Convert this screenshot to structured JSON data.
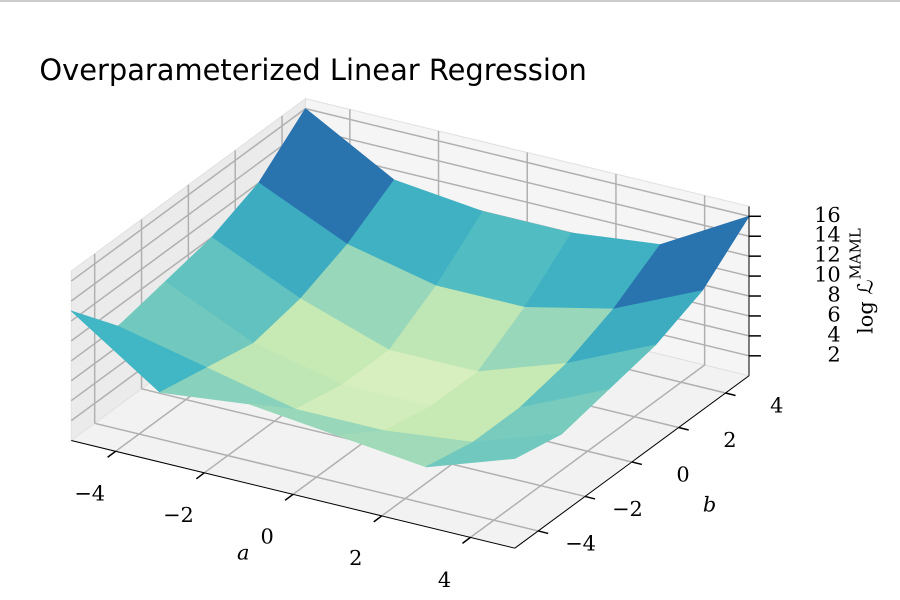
{
  "chart_data": {
    "type": "surface",
    "title": "Overparameterized Linear Regression",
    "xlabel": "a",
    "ylabel": "b",
    "zlabel": "log ℒ",
    "zlabel_superscript": "MAML",
    "x": [
      -5,
      -3,
      -1,
      1,
      3,
      5
    ],
    "y": [
      -5,
      -3,
      -1,
      1,
      3,
      5
    ],
    "z": [
      [
        13,
        7,
        8,
        7,
        6,
        9
      ],
      [
        8,
        6,
        4,
        4,
        5,
        8
      ],
      [
        9,
        5,
        3,
        3,
        5,
        9
      ],
      [
        10,
        6,
        3,
        3,
        6,
        10
      ],
      [
        12,
        8,
        6,
        6,
        8,
        12
      ],
      [
        16,
        11,
        10,
        10,
        11,
        16
      ]
    ],
    "colormap": [
      "#ffffd9",
      "#c7e9b4",
      "#41b6c4",
      "#225ea8",
      "#253494"
    ],
    "xlim": [
      -5,
      5
    ],
    "ylim": [
      -5,
      5
    ],
    "zlim": [
      0,
      17
    ],
    "xticks": [
      {
        "value": -4,
        "label": "−4"
      },
      {
        "value": -2,
        "label": "−2"
      },
      0,
      2,
      4
    ],
    "yticks": [
      {
        "value": -4,
        "label": "−4"
      },
      {
        "value": -2,
        "label": "−2"
      },
      0,
      2,
      4
    ],
    "zticks": [
      2,
      4,
      6,
      8,
      10,
      12,
      14,
      16
    ],
    "grid": true
  }
}
